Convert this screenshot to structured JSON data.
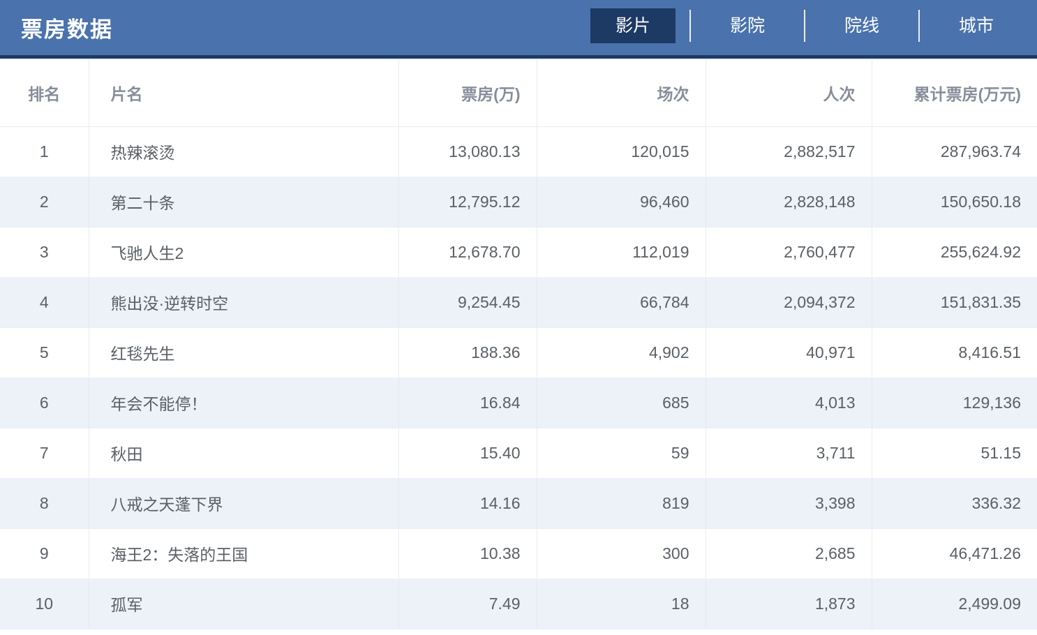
{
  "page_title": "票房数据",
  "colors": {
    "header_bg": "#4a72ad",
    "accent_dark": "#1d3a64",
    "row_stripe": "#edf1f8",
    "header_text": "#878d99",
    "cell_text": "#5a6066"
  },
  "tabs": {
    "items": [
      {
        "label": "影片",
        "active": true
      },
      {
        "label": "影院",
        "active": false
      },
      {
        "label": "院线",
        "active": false
      },
      {
        "label": "城市",
        "active": false
      }
    ]
  },
  "table": {
    "columns": [
      {
        "label": "排名"
      },
      {
        "label": "片名"
      },
      {
        "label": "票房(万)"
      },
      {
        "label": "场次"
      },
      {
        "label": "人次"
      },
      {
        "label": "累计票房(万元)"
      }
    ],
    "rows": [
      {
        "rank": "1",
        "title": "热辣滚烫",
        "box_office": "13,080.13",
        "screenings": "120,015",
        "admissions": "2,882,517",
        "cumulative": "287,963.74"
      },
      {
        "rank": "2",
        "title": "第二十条",
        "box_office": "12,795.12",
        "screenings": "96,460",
        "admissions": "2,828,148",
        "cumulative": "150,650.18"
      },
      {
        "rank": "3",
        "title": "飞驰人生2",
        "box_office": "12,678.70",
        "screenings": "112,019",
        "admissions": "2,760,477",
        "cumulative": "255,624.92"
      },
      {
        "rank": "4",
        "title": "熊出没·逆转时空",
        "box_office": "9,254.45",
        "screenings": "66,784",
        "admissions": "2,094,372",
        "cumulative": "151,831.35"
      },
      {
        "rank": "5",
        "title": "红毯先生",
        "box_office": "188.36",
        "screenings": "4,902",
        "admissions": "40,971",
        "cumulative": "8,416.51"
      },
      {
        "rank": "6",
        "title": "年会不能停！",
        "box_office": "16.84",
        "screenings": "685",
        "admissions": "4,013",
        "cumulative": "129,136"
      },
      {
        "rank": "7",
        "title": "秋田",
        "box_office": "15.40",
        "screenings": "59",
        "admissions": "3,711",
        "cumulative": "51.15"
      },
      {
        "rank": "8",
        "title": "八戒之天蓬下界",
        "box_office": "14.16",
        "screenings": "819",
        "admissions": "3,398",
        "cumulative": "336.32"
      },
      {
        "rank": "9",
        "title": "海王2：失落的王国",
        "box_office": "10.38",
        "screenings": "300",
        "admissions": "2,685",
        "cumulative": "46,471.26"
      },
      {
        "rank": "10",
        "title": "孤军",
        "box_office": "7.49",
        "screenings": "18",
        "admissions": "1,873",
        "cumulative": "2,499.09"
      }
    ]
  }
}
